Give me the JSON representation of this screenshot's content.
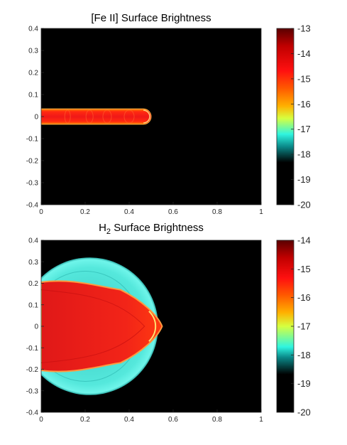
{
  "chart_data": [
    {
      "type": "heatmap",
      "title": "[Fe II] Surface Brightness",
      "xlabel": "",
      "ylabel": "",
      "xlim": [
        0,
        1
      ],
      "ylim": [
        -0.4,
        0.4
      ],
      "x_ticks": [
        "0",
        "0.2",
        "0.4",
        "0.6",
        "0.8",
        "1"
      ],
      "y_ticks": [
        "0.4",
        "0.3",
        "0.2",
        "0.1",
        "0",
        "-0.1",
        "-0.2",
        "-0.3",
        "-0.4"
      ],
      "colorbar_ticks": [
        "-13",
        "-14",
        "-15",
        "-16",
        "-17",
        "-18",
        "-19",
        "-20"
      ],
      "colorbar_range": [
        -20,
        -13
      ],
      "background_color": "#000000",
      "features": [
        {
          "name": "jet",
          "x_extent": [
            0,
            0.5
          ],
          "y_halfwidth": 0.035,
          "value": -14.2
        }
      ]
    },
    {
      "type": "heatmap",
      "title_main": "H",
      "title_sub": "2",
      "title_rest": " Surface Brightness",
      "xlabel": "",
      "ylabel": "",
      "xlim": [
        0,
        1
      ],
      "ylim": [
        -0.4,
        0.4
      ],
      "x_ticks": [
        "0",
        "0.2",
        "0.4",
        "0.6",
        "0.8",
        "1"
      ],
      "y_ticks": [
        "0.4",
        "0.3",
        "0.2",
        "0.1",
        "0",
        "-0.1",
        "-0.2",
        "-0.3",
        "-0.4"
      ],
      "colorbar_ticks": [
        "-14",
        "-15",
        "-16",
        "-17",
        "-18",
        "-19",
        "-20"
      ],
      "colorbar_range": [
        -20,
        -14
      ],
      "background_color": "#000000",
      "features": [
        {
          "name": "outer-shell",
          "center": [
            0.22,
            0
          ],
          "radius": 0.32,
          "value": -17.8
        },
        {
          "name": "bow-shock",
          "x_extent": [
            0,
            0.55
          ],
          "y_halfwidth": 0.205,
          "value": -15.3
        }
      ]
    }
  ]
}
